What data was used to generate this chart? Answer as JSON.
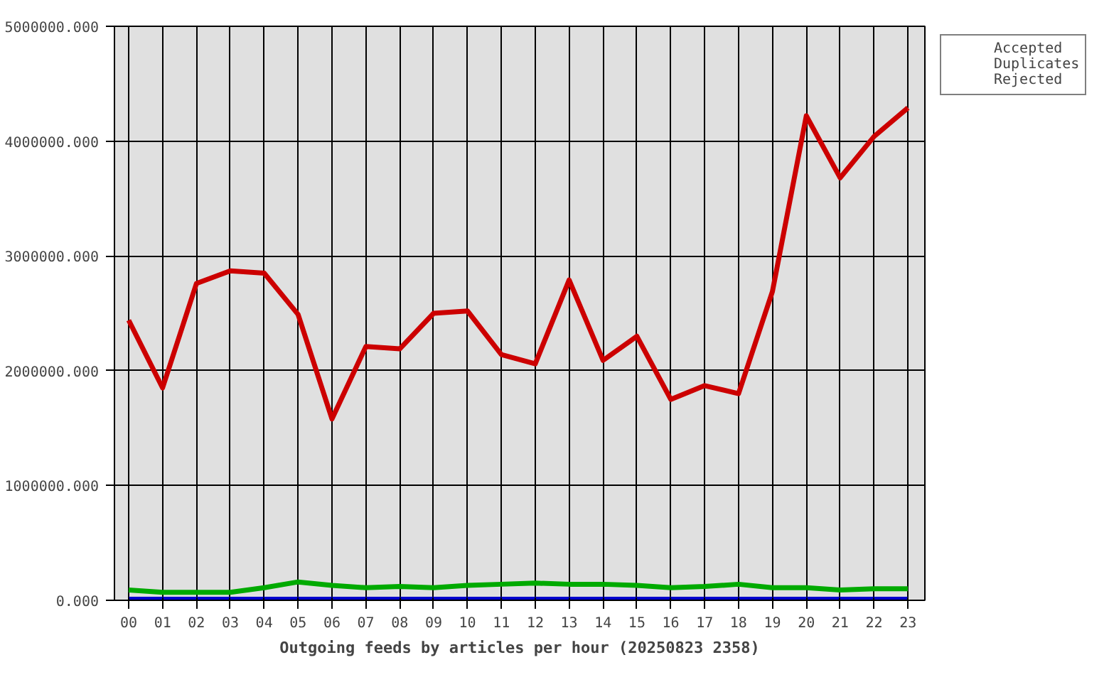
{
  "chart_data": {
    "type": "line",
    "xlabel": "Outgoing feeds by articles per hour (20250823 2358)",
    "categories": [
      "00",
      "01",
      "02",
      "03",
      "04",
      "05",
      "06",
      "07",
      "08",
      "09",
      "10",
      "11",
      "12",
      "13",
      "14",
      "15",
      "16",
      "17",
      "18",
      "19",
      "20",
      "21",
      "22",
      "23"
    ],
    "series": [
      {
        "name": "Accepted",
        "color": "#cc0000",
        "values": [
          2440000,
          1850000,
          2760000,
          2870000,
          2850000,
          2490000,
          1580000,
          2210000,
          2190000,
          2500000,
          2520000,
          2140000,
          2060000,
          2790000,
          2090000,
          2300000,
          1750000,
          1870000,
          1800000,
          2690000,
          4220000,
          3680000,
          4040000,
          4290000
        ]
      },
      {
        "name": "Duplicates",
        "color": "#00aa00",
        "values": [
          90000,
          70000,
          70000,
          70000,
          110000,
          160000,
          130000,
          110000,
          120000,
          110000,
          130000,
          140000,
          150000,
          140000,
          140000,
          130000,
          110000,
          120000,
          140000,
          110000,
          110000,
          90000,
          100000,
          100000
        ]
      },
      {
        "name": "Rejected",
        "color": "#0000cc",
        "values": [
          10000,
          10000,
          10000,
          10000,
          10000,
          10000,
          10000,
          10000,
          10000,
          10000,
          10000,
          10000,
          10000,
          10000,
          10000,
          10000,
          10000,
          10000,
          10000,
          10000,
          10000,
          10000,
          10000,
          10000
        ]
      }
    ],
    "ylim": [
      0,
      5000000
    ],
    "yticks": [
      {
        "value": 0,
        "label": "0.000"
      },
      {
        "value": 1000000,
        "label": "1000000.000"
      },
      {
        "value": 2000000,
        "label": "2000000.000"
      },
      {
        "value": 3000000,
        "label": "3000000.000"
      },
      {
        "value": 4000000,
        "label": "4000000.000"
      },
      {
        "value": 5000000,
        "label": "5000000.000"
      }
    ],
    "grid": true,
    "legend": "top right",
    "line_style": "solid"
  }
}
